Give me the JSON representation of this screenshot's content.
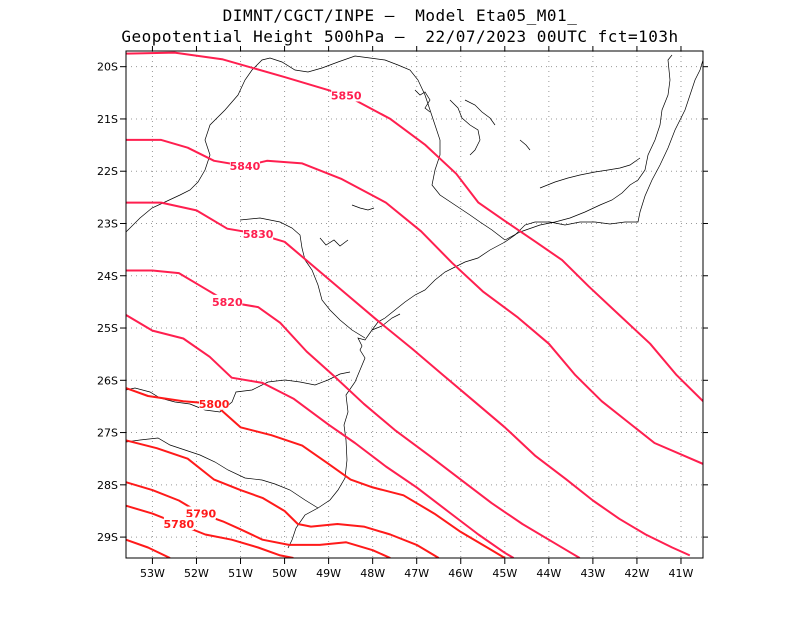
{
  "header": {
    "line1": "DIMNT/CGCT/INPE –  Model Eta05_M01_",
    "line2": "Geopotential Height 500hPa –  22/07/2023 00UTC fct=103h"
  },
  "map": {
    "lon_range": [
      -53.6,
      -40.5
    ],
    "lat_range": [
      -29.4,
      -19.7
    ],
    "lat_ticks": [
      {
        "value": -20,
        "label": "20S"
      },
      {
        "value": -21,
        "label": "21S"
      },
      {
        "value": -22,
        "label": "22S"
      },
      {
        "value": -23,
        "label": "23S"
      },
      {
        "value": -24,
        "label": "24S"
      },
      {
        "value": -25,
        "label": "25S"
      },
      {
        "value": -26,
        "label": "26S"
      },
      {
        "value": -27,
        "label": "27S"
      },
      {
        "value": -28,
        "label": "28S"
      },
      {
        "value": -29,
        "label": "29S"
      }
    ],
    "lon_ticks": [
      {
        "value": -53,
        "label": "53W"
      },
      {
        "value": -52,
        "label": "52W"
      },
      {
        "value": -51,
        "label": "51W"
      },
      {
        "value": -50,
        "label": "50W"
      },
      {
        "value": -49,
        "label": "49W"
      },
      {
        "value": -48,
        "label": "48W"
      },
      {
        "value": -47,
        "label": "47W"
      },
      {
        "value": -46,
        "label": "46W"
      },
      {
        "value": -45,
        "label": "45W"
      },
      {
        "value": -44,
        "label": "44W"
      },
      {
        "value": -43,
        "label": "43W"
      },
      {
        "value": -42,
        "label": "42W"
      },
      {
        "value": -41,
        "label": "41W"
      }
    ],
    "contour_colors": {
      "high": "#ff1f4f",
      "low": "#ff1a1a"
    },
    "contours": [
      {
        "value": 5850,
        "label": "5850",
        "pts": [
          [
            -53.6,
            -19.75
          ],
          [
            -52.5,
            -19.73
          ],
          [
            -51.4,
            -19.86
          ],
          [
            -50.0,
            -20.2
          ],
          [
            -48.6,
            -20.55
          ],
          [
            -47.6,
            -21.0
          ],
          [
            -46.8,
            -21.5
          ],
          [
            -46.1,
            -22.05
          ],
          [
            -45.6,
            -22.6
          ],
          [
            -45.0,
            -22.95
          ],
          [
            -44.3,
            -23.35
          ],
          [
            -43.7,
            -23.7
          ],
          [
            -43.1,
            -24.2
          ],
          [
            -42.4,
            -24.75
          ],
          [
            -41.7,
            -25.3
          ],
          [
            -41.1,
            -25.9
          ],
          [
            -40.5,
            -26.4
          ]
        ]
      },
      {
        "value": 5840,
        "label": "5840",
        "pts": [
          [
            -53.6,
            -21.4
          ],
          [
            -52.8,
            -21.4
          ],
          [
            -52.2,
            -21.55
          ],
          [
            -51.6,
            -21.8
          ],
          [
            -50.9,
            -21.9
          ],
          [
            -50.4,
            -21.8
          ],
          [
            -49.6,
            -21.85
          ],
          [
            -48.7,
            -22.15
          ],
          [
            -47.7,
            -22.6
          ],
          [
            -46.9,
            -23.15
          ],
          [
            -46.2,
            -23.75
          ],
          [
            -45.5,
            -24.3
          ],
          [
            -44.7,
            -24.8
          ],
          [
            -44.0,
            -25.3
          ],
          [
            -43.4,
            -25.9
          ],
          [
            -42.8,
            -26.4
          ],
          [
            -42.2,
            -26.8
          ],
          [
            -41.6,
            -27.2
          ],
          [
            -40.5,
            -27.6
          ]
        ]
      },
      {
        "value": 5830,
        "label": "5830",
        "pts": [
          [
            -53.6,
            -22.6
          ],
          [
            -52.8,
            -22.6
          ],
          [
            -52.0,
            -22.75
          ],
          [
            -51.3,
            -23.1
          ],
          [
            -50.6,
            -23.2
          ],
          [
            -50.0,
            -23.35
          ],
          [
            -49.3,
            -23.85
          ],
          [
            -48.6,
            -24.35
          ],
          [
            -47.9,
            -24.85
          ],
          [
            -47.1,
            -25.4
          ],
          [
            -46.4,
            -25.9
          ],
          [
            -45.7,
            -26.4
          ],
          [
            -45.0,
            -26.9
          ],
          [
            -44.3,
            -27.45
          ],
          [
            -43.6,
            -27.9
          ],
          [
            -43.0,
            -28.3
          ],
          [
            -42.4,
            -28.65
          ],
          [
            -41.8,
            -28.95
          ],
          [
            -41.2,
            -29.2
          ],
          [
            -40.8,
            -29.35
          ]
        ]
      },
      {
        "value": 5820,
        "label": "5820",
        "pts": [
          [
            -53.6,
            -23.9
          ],
          [
            -53.0,
            -23.9
          ],
          [
            -52.4,
            -23.95
          ],
          [
            -51.9,
            -24.2
          ],
          [
            -51.3,
            -24.5
          ],
          [
            -50.6,
            -24.6
          ],
          [
            -50.1,
            -24.9
          ],
          [
            -49.5,
            -25.45
          ],
          [
            -48.9,
            -25.9
          ],
          [
            -48.2,
            -26.45
          ],
          [
            -47.5,
            -26.95
          ],
          [
            -46.7,
            -27.45
          ],
          [
            -46.0,
            -27.9
          ],
          [
            -45.3,
            -28.35
          ],
          [
            -44.6,
            -28.75
          ],
          [
            -44.0,
            -29.05
          ],
          [
            -43.5,
            -29.3
          ],
          [
            -43.3,
            -29.4
          ]
        ]
      },
      {
        "value": 5810,
        "label": "",
        "pts": [
          [
            -53.6,
            -24.75
          ],
          [
            -53.0,
            -25.05
          ],
          [
            -52.3,
            -25.2
          ],
          [
            -51.7,
            -25.55
          ],
          [
            -51.2,
            -25.95
          ],
          [
            -50.5,
            -26.05
          ],
          [
            -49.8,
            -26.35
          ],
          [
            -49.0,
            -26.85
          ],
          [
            -48.4,
            -27.2
          ],
          [
            -47.7,
            -27.65
          ],
          [
            -47.0,
            -28.05
          ],
          [
            -46.3,
            -28.5
          ],
          [
            -45.6,
            -28.95
          ],
          [
            -45.0,
            -29.3
          ],
          [
            -44.8,
            -29.4
          ]
        ]
      },
      {
        "value": 5800,
        "label": "5800",
        "pts": [
          [
            -53.6,
            -26.15
          ],
          [
            -53.1,
            -26.3
          ],
          [
            -52.3,
            -26.4
          ],
          [
            -51.6,
            -26.45
          ],
          [
            -51.0,
            -26.9
          ],
          [
            -50.3,
            -27.05
          ],
          [
            -49.6,
            -27.25
          ],
          [
            -49.0,
            -27.6
          ],
          [
            -48.5,
            -27.9
          ],
          [
            -48.0,
            -28.05
          ],
          [
            -47.3,
            -28.2
          ],
          [
            -46.6,
            -28.55
          ],
          [
            -46.0,
            -28.9
          ],
          [
            -45.4,
            -29.2
          ],
          [
            -45.0,
            -29.4
          ]
        ]
      },
      {
        "value": 5800,
        "label": "",
        "pts": [
          [
            -53.6,
            -27.15
          ],
          [
            -52.9,
            -27.3
          ],
          [
            -52.2,
            -27.5
          ],
          [
            -51.6,
            -27.9
          ],
          [
            -51.0,
            -28.1
          ],
          [
            -50.5,
            -28.25
          ],
          [
            -50.0,
            -28.5
          ],
          [
            -49.7,
            -28.75
          ],
          [
            -49.4,
            -28.8
          ],
          [
            -48.8,
            -28.75
          ],
          [
            -48.2,
            -28.8
          ],
          [
            -47.6,
            -28.95
          ],
          [
            -47.0,
            -29.15
          ],
          [
            -46.5,
            -29.4
          ]
        ]
      },
      {
        "value": 5790,
        "label": "5790",
        "pts": [
          [
            -53.6,
            -27.95
          ],
          [
            -53.0,
            -28.1
          ],
          [
            -52.4,
            -28.3
          ],
          [
            -51.9,
            -28.55
          ],
          [
            -51.4,
            -28.7
          ],
          [
            -51.0,
            -28.85
          ],
          [
            -50.5,
            -29.05
          ],
          [
            -49.9,
            -29.15
          ],
          [
            -49.2,
            -29.15
          ],
          [
            -48.6,
            -29.1
          ],
          [
            -48.0,
            -29.25
          ],
          [
            -47.6,
            -29.4
          ]
        ]
      },
      {
        "value": 5780,
        "label": "5780",
        "pts": [
          [
            -53.6,
            -28.4
          ],
          [
            -53.0,
            -28.55
          ],
          [
            -52.4,
            -28.75
          ],
          [
            -51.8,
            -28.95
          ],
          [
            -51.2,
            -29.05
          ],
          [
            -50.6,
            -29.2
          ],
          [
            -50.1,
            -29.35
          ],
          [
            -49.8,
            -29.4
          ]
        ]
      },
      {
        "value": 5770,
        "label": "",
        "pts": [
          [
            -53.6,
            -29.05
          ],
          [
            -53.1,
            -29.2
          ],
          [
            -52.6,
            -29.4
          ]
        ]
      }
    ]
  }
}
